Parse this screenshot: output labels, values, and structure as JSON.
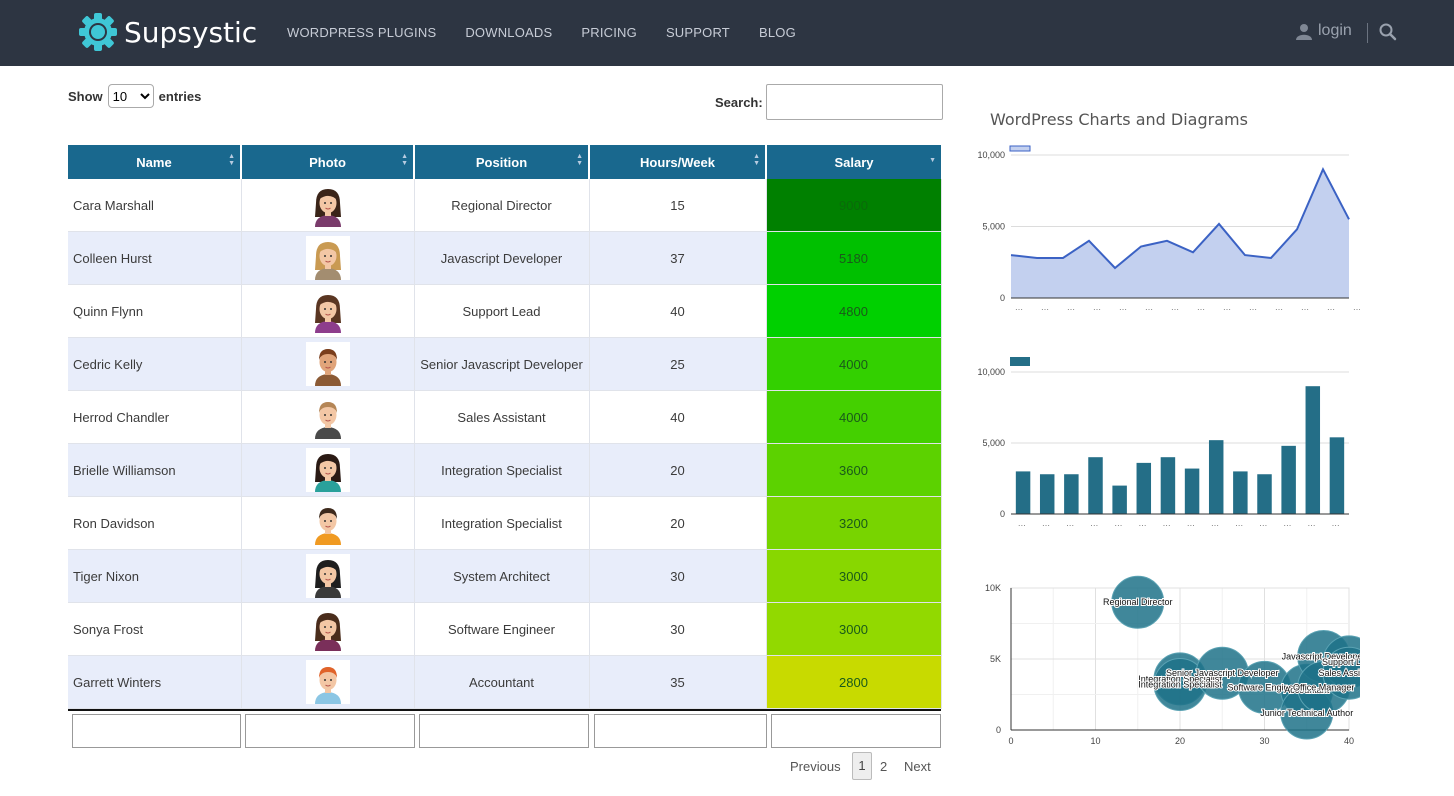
{
  "header": {
    "brand": "Supsystic",
    "nav": [
      "WORDPRESS PLUGINS",
      "DOWNLOADS",
      "PRICING",
      "SUPPORT",
      "BLOG"
    ],
    "login": "login"
  },
  "table_controls": {
    "show_label": "Show",
    "entries_label": "entries",
    "page_length": "10",
    "search_label": "Search:",
    "search_value": ""
  },
  "table": {
    "columns": [
      "Name",
      "Photo",
      "Position",
      "Hours/Week",
      "Salary"
    ],
    "rows": [
      {
        "name": "Cara Marshall",
        "position": "Regional Director",
        "hours": "15",
        "salary": "9000",
        "salary_bg": "#008000",
        "avatar": "female-dark-hair"
      },
      {
        "name": "Colleen Hurst",
        "position": "Javascript Developer",
        "hours": "37",
        "salary": "5180",
        "salary_bg": "#00c000",
        "avatar": "female-blonde"
      },
      {
        "name": "Quinn Flynn",
        "position": "Support Lead",
        "hours": "40",
        "salary": "4800",
        "salary_bg": "#00d000",
        "avatar": "female-brown-hair"
      },
      {
        "name": "Cedric Kelly",
        "position": "Senior Javascript Developer",
        "hours": "25",
        "salary": "4000",
        "salary_bg": "#33d000",
        "avatar": "male-mustache"
      },
      {
        "name": "Herrod Chandler",
        "position": "Sales Assistant",
        "hours": "40",
        "salary": "4000",
        "salary_bg": "#44d000",
        "avatar": "male-suit"
      },
      {
        "name": "Brielle Williamson",
        "position": "Integration Specialist",
        "hours": "20",
        "salary": "3600",
        "salary_bg": "#5cd200",
        "avatar": "female-teal-shirt"
      },
      {
        "name": "Ron Davidson",
        "position": "Integration Specialist",
        "hours": "20",
        "salary": "3200",
        "salary_bg": "#78d400",
        "avatar": "male-orange-shirt"
      },
      {
        "name": "Tiger Nixon",
        "position": "System Architect",
        "hours": "30",
        "salary": "3000",
        "salary_bg": "#88d700",
        "avatar": "female-black-hair"
      },
      {
        "name": "Sonya Frost",
        "position": "Software Engineer",
        "hours": "30",
        "salary": "3000",
        "salary_bg": "#92d900",
        "avatar": "female-ponytail"
      },
      {
        "name": "Garrett Winters",
        "position": "Accountant",
        "hours": "35",
        "salary": "2800",
        "salary_bg": "#c8da00",
        "avatar": "male-ginger"
      }
    ]
  },
  "pagination": {
    "previous": "Previous",
    "pages": [
      "1",
      "2"
    ],
    "current": "1",
    "next": "Next"
  },
  "charts_title": "WordPress Charts and Diagrams",
  "chart_data": [
    {
      "type": "area",
      "ylim": [
        0,
        10000
      ],
      "yticks": [
        "10,000",
        "5,000",
        "0"
      ],
      "color": "#3b62c4",
      "fill": "#c3d0ef",
      "values": [
        3000,
        2800,
        2800,
        4000,
        2100,
        3600,
        4000,
        3200,
        5180,
        3000,
        2800,
        4800,
        9000,
        5500
      ]
    },
    {
      "type": "bar",
      "ylim": [
        0,
        10000
      ],
      "yticks": [
        "10,000",
        "5,000",
        "0"
      ],
      "color": "#246e87",
      "values": [
        3000,
        2800,
        2800,
        4000,
        2000,
        3600,
        4000,
        3200,
        5200,
        3000,
        2800,
        4800,
        9000,
        5400
      ]
    },
    {
      "type": "scatter",
      "xlim": [
        0,
        40
      ],
      "ylim": [
        0,
        10000
      ],
      "xticks": [
        "0",
        "10",
        "20",
        "30",
        "40"
      ],
      "yticks": [
        "10K",
        "5K",
        "0"
      ],
      "color": "#1f7288",
      "points": [
        {
          "x": 15,
          "y": 9000,
          "label": "Regional Director"
        },
        {
          "x": 20,
          "y": 3600,
          "label": "Integration Specialist"
        },
        {
          "x": 20,
          "y": 3200,
          "label": "Integration Specialist"
        },
        {
          "x": 25,
          "y": 4000,
          "label": "Senior Javascript Developer"
        },
        {
          "x": 30,
          "y": 3000,
          "label": "Software Engineer"
        },
        {
          "x": 35,
          "y": 2800,
          "label": "Accountant"
        },
        {
          "x": 35,
          "y": 1200,
          "label": "Junior Technical Author"
        },
        {
          "x": 37,
          "y": 5180,
          "label": "Javascript Developer"
        },
        {
          "x": 37,
          "y": 3000,
          "label": "Office Manager"
        },
        {
          "x": 40,
          "y": 4800,
          "label": "Support Lead"
        },
        {
          "x": 40,
          "y": 4000,
          "label": "Sales Assistant"
        }
      ]
    }
  ]
}
